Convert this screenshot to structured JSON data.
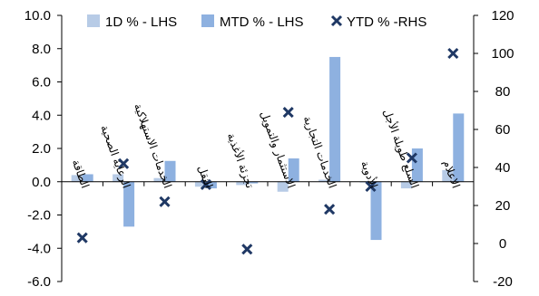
{
  "chart_data": {
    "type": "bar",
    "categories": [
      "الطاقة",
      "الرعاية الصحية",
      "الخدمات الاستهلاكية",
      "النقل",
      "تجزئة الأغذية",
      "الاستثمار والتمويل",
      "الخدمات التجارية",
      "الأدوية",
      "السلع طويلة الأجل",
      "الاعلام"
    ],
    "series": [
      {
        "name": "1D % - LHS",
        "axis": "left",
        "color": "#b7cbe6",
        "values": [
          0.4,
          0.45,
          0.22,
          -0.3,
          -0.2,
          -0.6,
          0.12,
          -0.05,
          -0.4,
          0.7
        ]
      },
      {
        "name": "MTD % - LHS",
        "axis": "left",
        "color": "#8eb1e0",
        "values": [
          0.45,
          -2.7,
          1.25,
          -0.4,
          -0.1,
          1.4,
          7.5,
          -3.5,
          2.0,
          4.1
        ]
      },
      {
        "name": "YTD % -RHS",
        "axis": "right",
        "color": "#1f3864",
        "marker": "x",
        "values": [
          3,
          42,
          22,
          31,
          -3,
          69,
          18,
          30,
          45,
          100
        ]
      }
    ],
    "y_left": {
      "min": -6.0,
      "max": 10.0,
      "ticks": [
        "10.0",
        "8.0",
        "6.0",
        "4.0",
        "2.0",
        "0.0",
        "-2.0",
        "-4.0",
        "-6.0"
      ]
    },
    "y_right": {
      "min": -20,
      "max": 120,
      "ticks": [
        "120",
        "100",
        "80",
        "60",
        "40",
        "20",
        "0",
        "-20"
      ]
    },
    "legend": {
      "placement": "top"
    },
    "grid": false
  }
}
